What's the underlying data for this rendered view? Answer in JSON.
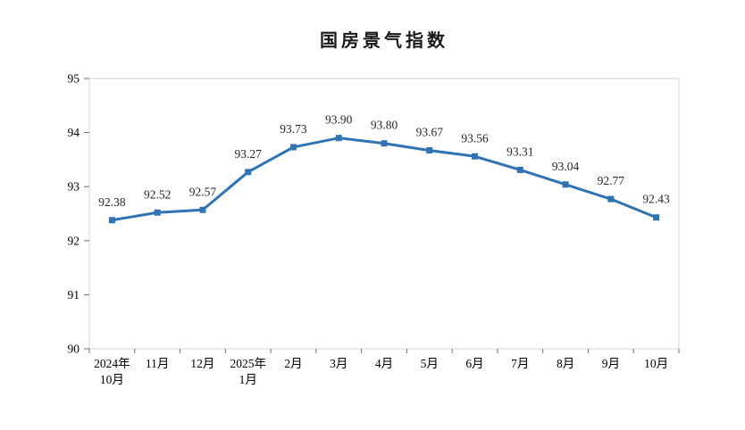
{
  "page": {
    "background": "#ffffff"
  },
  "chart_data": {
    "type": "line",
    "title": "国房景气指数",
    "categories": [
      [
        "2024年",
        "10月"
      ],
      [
        "11月"
      ],
      [
        "12月"
      ],
      [
        "2025年",
        "1月"
      ],
      [
        "2月"
      ],
      [
        "3月"
      ],
      [
        "4月"
      ],
      [
        "5月"
      ],
      [
        "6月"
      ],
      [
        "7月"
      ],
      [
        "8月"
      ],
      [
        "9月"
      ],
      [
        "10月"
      ]
    ],
    "values": [
      92.38,
      92.52,
      92.57,
      93.27,
      93.73,
      93.9,
      93.8,
      93.67,
      93.56,
      93.31,
      93.04,
      92.77,
      92.43
    ],
    "data_labels": [
      "92.38",
      "92.52",
      "92.57",
      "93.27",
      "93.73",
      "93.90",
      "93.80",
      "93.67",
      "93.56",
      "93.31",
      "93.04",
      "92.77",
      "92.43"
    ],
    "xlabel": "",
    "ylabel": "",
    "ylim": [
      90,
      95
    ],
    "yticks": [
      "90",
      "91",
      "92",
      "93",
      "94",
      "95"
    ],
    "grid": false,
    "legend": "none",
    "marker": "square",
    "line_color": "#2E74B5",
    "data_label_color": "#262626",
    "axis_text_color": "#000000",
    "plot_border_color": "#d4d4d4",
    "tick_color": "#6e6e6e"
  }
}
